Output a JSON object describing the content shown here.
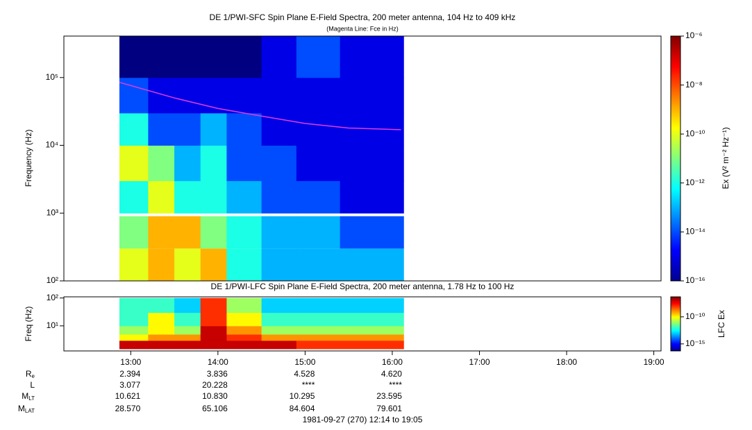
{
  "chart_data": [
    {
      "type": "heatmap",
      "title": "DE 1/PWI-SFC  Spin Plane E-Field Spectra, 200 meter antenna, 104 Hz to 409 kHz",
      "subtitle": "(Magenta Line: Fce in Hz)",
      "y_label": "Frequency (Hz)",
      "log_y": true,
      "xlim": [
        12.233,
        19.083
      ],
      "ylim": [
        100,
        409000
      ],
      "yticks": [
        {
          "value": 100,
          "label": "10²"
        },
        {
          "value": 1000,
          "label": "10³"
        },
        {
          "value": 10000,
          "label": "10⁴"
        },
        {
          "value": 100000,
          "label": "10⁵"
        }
      ],
      "x": [
        12.87,
        13.2,
        13.5,
        13.8,
        14.1,
        14.5,
        14.9,
        15.4,
        16.13
      ],
      "y": [
        100,
        300,
        900,
        1000,
        3000,
        10000,
        30000,
        100000,
        409000
      ],
      "z": [
        [
          1e-10,
          1e-09,
          1e-10,
          1e-09,
          1e-12,
          1e-13,
          1e-13,
          1e-13
        ],
        [
          1e-11,
          1e-09,
          1e-09,
          1e-11,
          1e-12,
          1e-13,
          1e-13,
          1e-14
        ],
        [
          null,
          null,
          null,
          null,
          null,
          null,
          null,
          null
        ],
        [
          1e-12,
          1e-10,
          1e-12,
          1e-12,
          1e-13,
          1e-14,
          1e-14,
          1e-15
        ],
        [
          1e-10,
          1e-11,
          1e-13,
          1e-12,
          1e-14,
          1e-14,
          1e-15,
          1e-15
        ],
        [
          1e-12,
          1e-14,
          1e-14,
          1e-13,
          1e-14,
          1e-15,
          1e-15,
          1e-15
        ],
        [
          1e-14,
          1e-15,
          1e-15,
          1e-15,
          1e-15,
          1e-15,
          1e-15,
          1e-15
        ],
        [
          1e-16,
          1e-16,
          1e-16,
          1e-16,
          1e-16,
          1e-15,
          1e-14,
          1e-15
        ]
      ],
      "clim": [
        1e-16,
        1e-06
      ],
      "cticks": [
        {
          "value": 1e-06,
          "label": "10⁻⁶"
        },
        {
          "value": 1e-08,
          "label": "10⁻⁸"
        },
        {
          "value": 1e-10,
          "label": "10⁻¹⁰"
        },
        {
          "value": 1e-12,
          "label": "10⁻¹²"
        },
        {
          "value": 1e-14,
          "label": "10⁻¹⁴"
        },
        {
          "value": 1e-16,
          "label": "10⁻¹⁶"
        }
      ],
      "colorbar_label": "Ex (V² m⁻² Hz⁻¹)",
      "line": {
        "color": "#e03ce0",
        "x": [
          12.87,
          13.5,
          14.0,
          14.5,
          15.0,
          15.5,
          16.1
        ],
        "values": [
          85000,
          50000,
          35000,
          27000,
          21000,
          18000,
          17000
        ]
      }
    },
    {
      "type": "heatmap",
      "title": "DE 1/PWI-LFC  Spin Plane E-Field Spectra, 200 meter antenna, 1.78 Hz to 100 Hz",
      "y_label": "Freq (Hz)",
      "log_y": true,
      "xlim": [
        12.233,
        19.083
      ],
      "ylim": [
        1.26,
        110
      ],
      "xticks": [
        {
          "value": 13,
          "label": "13:00"
        },
        {
          "value": 14,
          "label": "14:00"
        },
        {
          "value": 15,
          "label": "15:00"
        },
        {
          "value": 16,
          "label": "16:00"
        },
        {
          "value": 17,
          "label": "17:00"
        },
        {
          "value": 18,
          "label": "18:00"
        },
        {
          "value": 19,
          "label": "19:00"
        }
      ],
      "yticks": [
        {
          "value": 10,
          "label": "10¹"
        },
        {
          "value": 100,
          "label": "10²"
        }
      ],
      "x": [
        12.87,
        13.2,
        13.5,
        13.8,
        14.1,
        14.5,
        14.9,
        15.4,
        16.13
      ],
      "y": [
        1.5,
        3,
        5,
        10,
        30,
        100
      ],
      "z": [
        [
          1e-07,
          1e-07,
          1e-07,
          1e-07,
          1e-07,
          1e-07,
          1e-08,
          1e-08
        ],
        [
          1e-10,
          1e-09,
          1e-09,
          1e-07,
          1e-08,
          1e-09,
          1e-09,
          1e-09
        ],
        [
          1e-11,
          1e-10,
          1e-11,
          1e-07,
          1e-09,
          1e-11,
          1e-11,
          1e-11
        ],
        [
          1e-12,
          1e-10,
          1e-12,
          1e-08,
          1e-10,
          1e-12,
          1e-12,
          1e-12
        ],
        [
          1e-12,
          1e-12,
          1e-13,
          1e-08,
          1e-11,
          1e-13,
          1e-13,
          1e-13
        ]
      ],
      "clim": [
        5e-17,
        5e-07
      ],
      "cticks": [
        {
          "value": 1e-10,
          "label": "10⁻¹⁰"
        },
        {
          "value": 1e-15,
          "label": "10⁻¹⁵"
        }
      ],
      "colorbar_label": "LFC Ex"
    }
  ],
  "ephemeris": {
    "rows": [
      {
        "name": "R",
        "sub": "e"
      },
      {
        "name": "L",
        "sub": ""
      },
      {
        "name": "M",
        "sub": "LT"
      },
      {
        "name": "M",
        "sub": "LAT"
      }
    ],
    "times": [
      13,
      14,
      15,
      16
    ],
    "values": [
      [
        "2.394",
        "3.836",
        "4.528",
        "4.620"
      ],
      [
        "3.077",
        "20.228",
        "****",
        "****"
      ],
      [
        "10.621",
        "10.830",
        "10.295",
        "23.595"
      ],
      [
        "28.570",
        "65.106",
        "84.604",
        "79.601"
      ]
    ],
    "footer": "1981-09-27 (270) 12:14 to 19:05"
  }
}
